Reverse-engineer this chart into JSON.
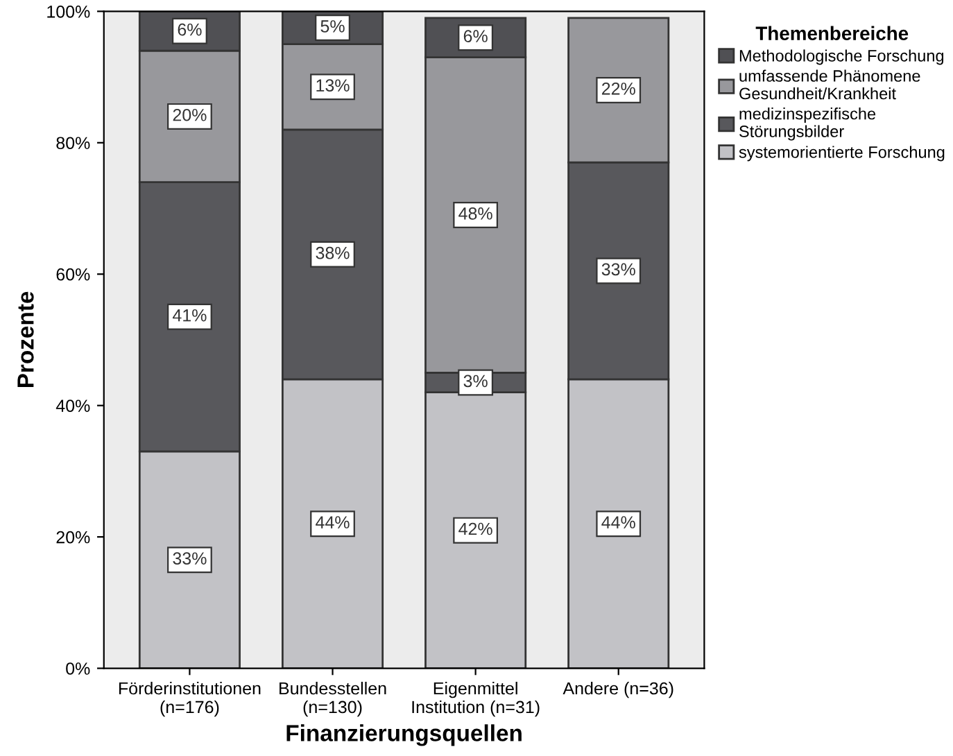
{
  "chart_data": {
    "type": "bar",
    "stacked": true,
    "xlabel": "Finanzierungsquellen",
    "ylabel": "Prozente",
    "legend_title": "Themenbereiche",
    "legend": "right",
    "grid": false,
    "categories": [
      "Förderinstitutionen\n(n=176)",
      "Bundesstellen\n(n=130)",
      "Eigenmittel\nInstitution (n=31)",
      "Andere (n=36)"
    ],
    "series": [
      {
        "name": "systemorientierte Forschung",
        "color": "#c2c2c6",
        "values": [
          33,
          44,
          42,
          44
        ],
        "value_labels": [
          "33%",
          "44%",
          "42%",
          "44%"
        ]
      },
      {
        "name": "medizinspezifische\nStörungsbilder",
        "color": "#58585c",
        "values": [
          41,
          38,
          3,
          33
        ],
        "value_labels": [
          "41%",
          "38%",
          "3%",
          "33%"
        ]
      },
      {
        "name": "umfassende Phänomene\nGesundheit/Krankheit",
        "color": "#98989c",
        "values": [
          20,
          13,
          48,
          22
        ],
        "value_labels": [
          "20%",
          "13%",
          "48%",
          "22%"
        ]
      },
      {
        "name": "Methodologische Forschung",
        "color": "#505054",
        "values": [
          6,
          5,
          6,
          null
        ],
        "value_labels": [
          "6%",
          "5%",
          "6%",
          null
        ]
      }
    ],
    "ylim": [
      0,
      100
    ],
    "yticks": [
      {
        "value": 0,
        "label": "0%"
      },
      {
        "value": 20,
        "label": "20%"
      },
      {
        "value": 40,
        "label": "40%"
      },
      {
        "value": 60,
        "label": "60%"
      },
      {
        "value": 80,
        "label": "80%"
      },
      {
        "value": 100,
        "label": "100%"
      }
    ]
  }
}
